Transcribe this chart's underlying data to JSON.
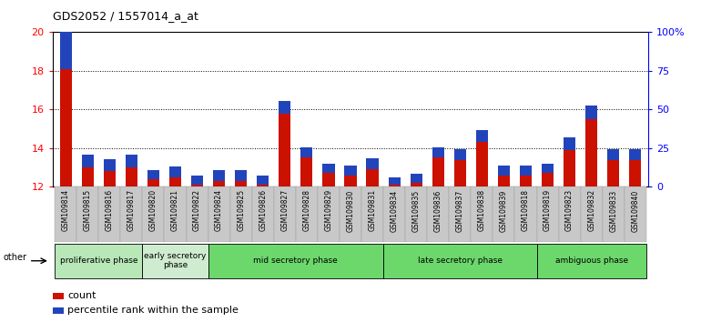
{
  "title": "GDS2052 / 1557014_a_at",
  "samples": [
    "GSM109814",
    "GSM109815",
    "GSM109816",
    "GSM109817",
    "GSM109820",
    "GSM109821",
    "GSM109822",
    "GSM109824",
    "GSM109825",
    "GSM109826",
    "GSM109827",
    "GSM109828",
    "GSM109829",
    "GSM109830",
    "GSM109831",
    "GSM109834",
    "GSM109835",
    "GSM109836",
    "GSM109837",
    "GSM109838",
    "GSM109839",
    "GSM109818",
    "GSM109819",
    "GSM109823",
    "GSM109832",
    "GSM109833",
    "GSM109840"
  ],
  "red_values": [
    18.1,
    13.0,
    12.8,
    13.0,
    12.4,
    12.5,
    12.1,
    12.3,
    12.3,
    12.1,
    15.8,
    13.5,
    12.7,
    12.6,
    12.9,
    12.1,
    12.2,
    13.5,
    13.4,
    14.3,
    12.6,
    12.6,
    12.7,
    13.9,
    15.5,
    13.4,
    13.4
  ],
  "blue_heights_pct": [
    30,
    8,
    8,
    8,
    6,
    7,
    6,
    7,
    7,
    6,
    8,
    7,
    6,
    6,
    7,
    5,
    6,
    7,
    7,
    8,
    6,
    6,
    6,
    8,
    9,
    7,
    7
  ],
  "ymin": 12,
  "ymax": 20,
  "yticks_left": [
    12,
    14,
    16,
    18,
    20
  ],
  "y2min": 0,
  "y2max": 100,
  "y2ticks": [
    0,
    25,
    50,
    75,
    100
  ],
  "phases": [
    {
      "label": "proliferative phase",
      "start": 0,
      "end": 4,
      "color": "#b8e8b8"
    },
    {
      "label": "early secretory\nphase",
      "start": 4,
      "end": 7,
      "color": "#d0ecd0"
    },
    {
      "label": "mid secretory phase",
      "start": 7,
      "end": 15,
      "color": "#6cd86c"
    },
    {
      "label": "late secretory phase",
      "start": 15,
      "end": 22,
      "color": "#6cd86c"
    },
    {
      "label": "ambiguous phase",
      "start": 22,
      "end": 27,
      "color": "#6cd86c"
    }
  ],
  "bar_width": 0.55,
  "red_color": "#cc1100",
  "blue_color": "#2244bb",
  "tick_bg_color": "#c8c8c8",
  "legend_count": "count",
  "legend_percentile": "percentile rank within the sample"
}
